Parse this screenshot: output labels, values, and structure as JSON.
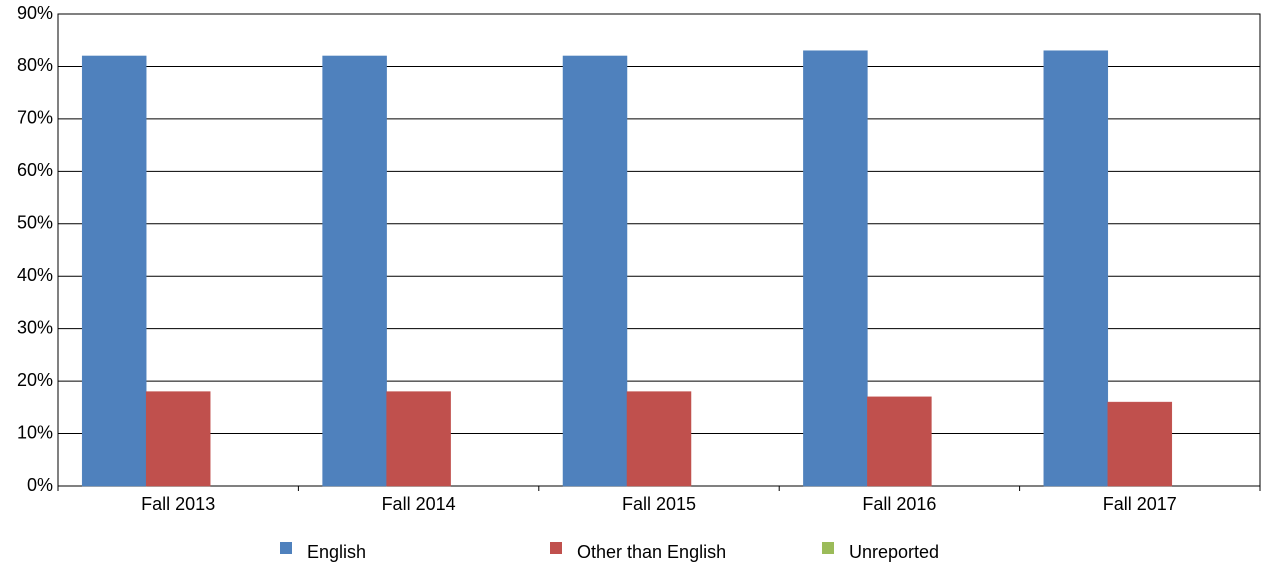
{
  "chart_data": {
    "type": "bar",
    "categories": [
      "Fall 2013",
      "Fall 2014",
      "Fall 2015",
      "Fall 2016",
      "Fall 2017"
    ],
    "series": [
      {
        "name": "English",
        "color": "#4f81bd",
        "values": [
          82,
          82,
          82,
          83,
          83
        ]
      },
      {
        "name": "Other than English",
        "color": "#c0504d",
        "values": [
          18,
          18,
          18,
          17,
          16
        ]
      },
      {
        "name": "Unreported",
        "color": "#9bbb59",
        "values": [
          0,
          0,
          0,
          0,
          0
        ]
      }
    ],
    "ylim": [
      0,
      90
    ],
    "yticks": [
      {
        "value": 0,
        "label": "0%"
      },
      {
        "value": 10,
        "label": "10%"
      },
      {
        "value": 20,
        "label": "20%"
      },
      {
        "value": 30,
        "label": "30%"
      },
      {
        "value": 40,
        "label": "40%"
      },
      {
        "value": 50,
        "label": "50%"
      },
      {
        "value": 60,
        "label": "60%"
      },
      {
        "value": 70,
        "label": "70%"
      },
      {
        "value": 80,
        "label": "80%"
      },
      {
        "value": 90,
        "label": "90%"
      }
    ],
    "grid": true,
    "legend": "bottom"
  }
}
